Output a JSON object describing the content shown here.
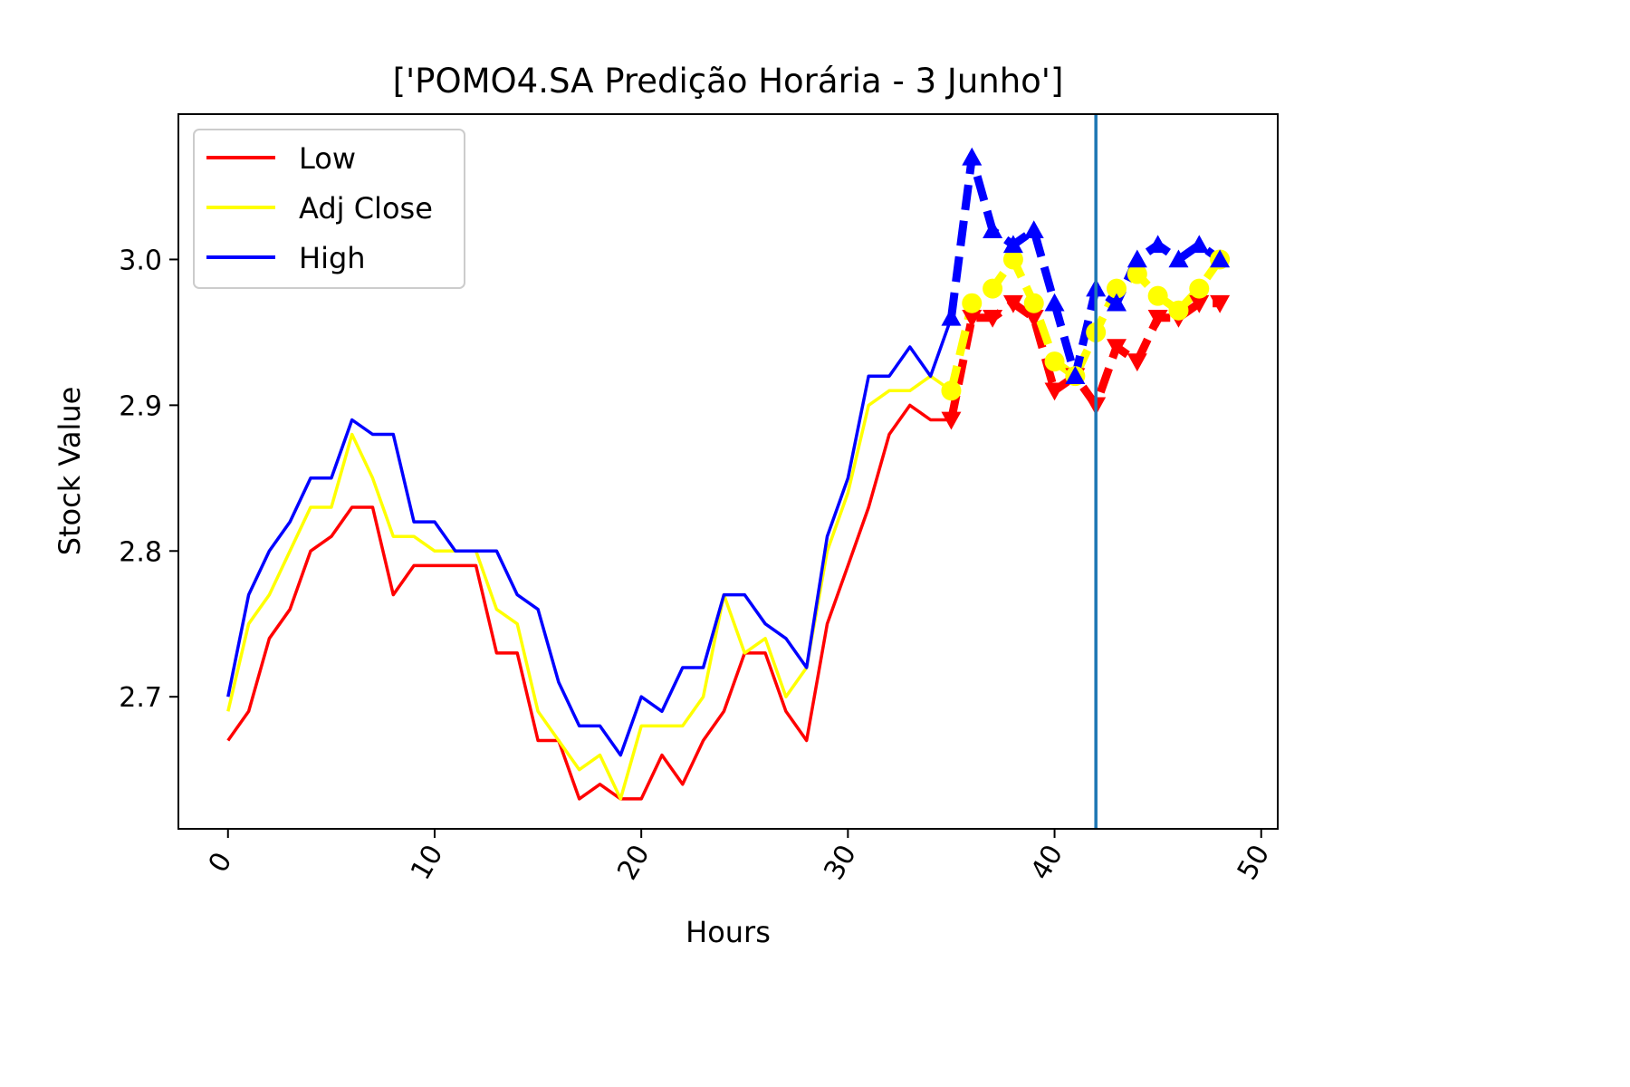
{
  "chart_data": {
    "type": "line",
    "title": "['POMO4.SA Predição Horária - 3 Junho']",
    "xlabel": "Hours",
    "ylabel": "Stock Value",
    "xlim": [
      -2.4,
      50.8
    ],
    "ylim": [
      2.6094,
      3.0997
    ],
    "xticks": [
      0,
      10,
      20,
      30,
      40,
      50
    ],
    "yticks": [
      2.7,
      2.8,
      2.9,
      3.0
    ],
    "xtick_labels": [
      "0",
      "10",
      "20",
      "30",
      "40",
      "50"
    ],
    "ytick_labels": [
      "2.7",
      "2.8",
      "2.9",
      "3.0"
    ],
    "grid": false,
    "legend_position": "upper-left",
    "vertical_line": {
      "x": 42,
      "color": "#1f77b4"
    },
    "series": [
      {
        "name": "Low",
        "color": "#ff0000",
        "x": [
          0,
          1,
          2,
          3,
          4,
          5,
          6,
          7,
          8,
          9,
          10,
          11,
          12,
          13,
          14,
          15,
          16,
          17,
          18,
          19,
          20,
          21,
          22,
          23,
          24,
          25,
          26,
          27,
          28,
          29,
          30,
          31,
          32,
          33,
          34,
          35
        ],
        "values": [
          2.67,
          2.69,
          2.74,
          2.76,
          2.8,
          2.81,
          2.83,
          2.83,
          2.77,
          2.79,
          2.79,
          2.79,
          2.79,
          2.73,
          2.73,
          2.67,
          2.67,
          2.63,
          2.64,
          2.63,
          2.63,
          2.66,
          2.64,
          2.67,
          2.69,
          2.73,
          2.73,
          2.69,
          2.67,
          2.75,
          2.79,
          2.83,
          2.88,
          2.9,
          2.89,
          2.89
        ]
      },
      {
        "name": "Adj Close",
        "color": "#ffff00",
        "x": [
          0,
          1,
          2,
          3,
          4,
          5,
          6,
          7,
          8,
          9,
          10,
          11,
          12,
          13,
          14,
          15,
          16,
          17,
          18,
          19,
          20,
          21,
          22,
          23,
          24,
          25,
          26,
          27,
          28,
          29,
          30,
          31,
          32,
          33,
          34,
          35
        ],
        "values": [
          2.69,
          2.75,
          2.77,
          2.8,
          2.83,
          2.83,
          2.88,
          2.85,
          2.81,
          2.81,
          2.8,
          2.8,
          2.8,
          2.76,
          2.75,
          2.69,
          2.67,
          2.65,
          2.66,
          2.63,
          2.68,
          2.68,
          2.68,
          2.7,
          2.77,
          2.73,
          2.74,
          2.7,
          2.72,
          2.8,
          2.84,
          2.9,
          2.91,
          2.91,
          2.92,
          2.91
        ]
      },
      {
        "name": "High",
        "color": "#0000ff",
        "x": [
          0,
          1,
          2,
          3,
          4,
          5,
          6,
          7,
          8,
          9,
          10,
          11,
          12,
          13,
          14,
          15,
          16,
          17,
          18,
          19,
          20,
          21,
          22,
          23,
          24,
          25,
          26,
          27,
          28,
          29,
          30,
          31,
          32,
          33,
          34,
          35
        ],
        "values": [
          2.7,
          2.77,
          2.8,
          2.82,
          2.85,
          2.85,
          2.89,
          2.88,
          2.88,
          2.82,
          2.82,
          2.8,
          2.8,
          2.8,
          2.77,
          2.76,
          2.71,
          2.68,
          2.68,
          2.66,
          2.7,
          2.69,
          2.72,
          2.72,
          2.77,
          2.77,
          2.75,
          2.74,
          2.72,
          2.81,
          2.85,
          2.92,
          2.92,
          2.94,
          2.92,
          2.96
        ]
      }
    ],
    "prediction_series": [
      {
        "color": "#ff0000",
        "marker": "triangle-down",
        "x": [
          35,
          36,
          37,
          38,
          39,
          40,
          41,
          42,
          43,
          44,
          45,
          46,
          47,
          48
        ],
        "values": [
          2.89,
          2.96,
          2.96,
          2.97,
          2.96,
          2.91,
          2.92,
          2.9,
          2.94,
          2.93,
          2.96,
          2.96,
          2.97,
          2.97
        ]
      },
      {
        "color": "#ffff00",
        "marker": "circle",
        "x": [
          35,
          36,
          37,
          38,
          39,
          40,
          41,
          42,
          43,
          44,
          45,
          46,
          47,
          48
        ],
        "values": [
          2.91,
          2.97,
          2.98,
          3.0,
          2.97,
          2.93,
          2.92,
          2.95,
          2.98,
          2.99,
          2.975,
          2.965,
          2.98,
          3.0
        ]
      },
      {
        "color": "#0000ff",
        "marker": "triangle-up",
        "x": [
          35,
          36,
          37,
          38,
          39,
          40,
          41,
          42,
          43,
          44,
          45,
          46,
          47,
          48
        ],
        "values": [
          2.96,
          3.07,
          3.02,
          3.01,
          3.02,
          2.97,
          2.92,
          2.98,
          2.97,
          3.0,
          3.01,
          3.0,
          3.01,
          3.0
        ]
      }
    ]
  }
}
